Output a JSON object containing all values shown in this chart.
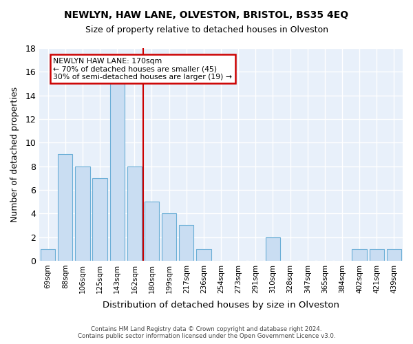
{
  "title": "NEWLYN, HAW LANE, OLVESTON, BRISTOL, BS35 4EQ",
  "subtitle": "Size of property relative to detached houses in Olveston",
  "xlabel": "Distribution of detached houses by size in Olveston",
  "ylabel": "Number of detached properties",
  "footnote1": "Contains HM Land Registry data © Crown copyright and database right 2024.",
  "footnote2": "Contains public sector information licensed under the Open Government Licence v3.0.",
  "categories": [
    "69sqm",
    "88sqm",
    "106sqm",
    "125sqm",
    "143sqm",
    "162sqm",
    "180sqm",
    "199sqm",
    "217sqm",
    "236sqm",
    "254sqm",
    "273sqm",
    "291sqm",
    "310sqm",
    "328sqm",
    "347sqm",
    "365sqm",
    "384sqm",
    "402sqm",
    "421sqm",
    "439sqm"
  ],
  "values": [
    1,
    9,
    8,
    7,
    15,
    8,
    5,
    4,
    3,
    1,
    0,
    0,
    0,
    2,
    0,
    0,
    0,
    0,
    1,
    1,
    1
  ],
  "bar_color": "#c9ddf2",
  "bar_edge_color": "#6aaed6",
  "fig_background_color": "#ffffff",
  "ax_background_color": "#e8f0fa",
  "grid_color": "#ffffff",
  "ylim": [
    0,
    18
  ],
  "yticks": [
    0,
    2,
    4,
    6,
    8,
    10,
    12,
    14,
    16,
    18
  ],
  "annotation_line1": "NEWLYN HAW LANE: 170sqm",
  "annotation_line2": "← 70% of detached houses are smaller (45)",
  "annotation_line3": "30% of semi-detached houses are larger (19) →",
  "vline_x_index": 5.5,
  "annotation_box_color": "#ffffff",
  "annotation_box_edge_color": "#cc0000",
  "vline_color": "#cc0000"
}
